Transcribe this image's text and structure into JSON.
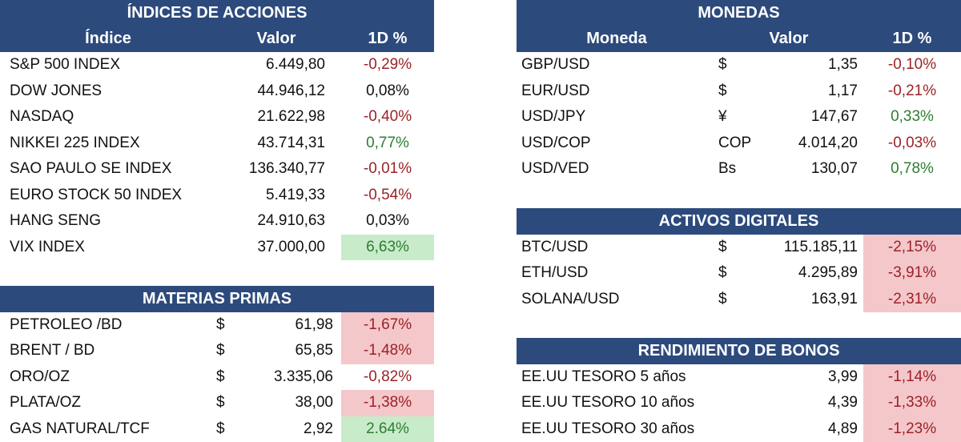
{
  "indices": {
    "title": "ÍNDICES DE ACCIONES",
    "headers": [
      "Índice",
      "Valor",
      "1D %"
    ],
    "rows": [
      {
        "name": "S&P 500 INDEX",
        "value": "6.449,80",
        "change": "-0,29%",
        "dir": "neg",
        "hl": ""
      },
      {
        "name": "DOW JONES",
        "value": "44.946,12",
        "change": "0,08%",
        "dir": "neu",
        "hl": ""
      },
      {
        "name": "NASDAQ",
        "value": "21.622,98",
        "change": "-0,40%",
        "dir": "neg",
        "hl": ""
      },
      {
        "name": "NIKKEI 225 INDEX",
        "value": "43.714,31",
        "change": "0,77%",
        "dir": "pos",
        "hl": ""
      },
      {
        "name": "SAO PAULO SE INDEX",
        "value": "136.340,77",
        "change": "-0,01%",
        "dir": "neg",
        "hl": ""
      },
      {
        "name": "EURO STOCK 50 INDEX",
        "value": "5.419,33",
        "change": "-0,54%",
        "dir": "neg",
        "hl": ""
      },
      {
        "name": "HANG SENG",
        "value": "24.910,63",
        "change": "0,03%",
        "dir": "neu",
        "hl": ""
      },
      {
        "name": "VIX INDEX",
        "value": "37.000,00",
        "change": "6,63%",
        "dir": "pos",
        "hl": "green"
      }
    ]
  },
  "commodities": {
    "title": "MATERIAS PRIMAS",
    "rows": [
      {
        "name": "PETROLEO /BD",
        "cur": "$",
        "value": "61,98",
        "change": "-1,67%",
        "dir": "neg",
        "hl": "red"
      },
      {
        "name": "BRENT / BD",
        "cur": "$",
        "value": "65,85",
        "change": "-1,48%",
        "dir": "neg",
        "hl": "red"
      },
      {
        "name": "ORO/OZ",
        "cur": "$",
        "value": "3.335,06",
        "change": "-0,82%",
        "dir": "neg",
        "hl": ""
      },
      {
        "name": "PLATA/OZ",
        "cur": "$",
        "value": "38,00",
        "change": "-1,38%",
        "dir": "neg",
        "hl": "red"
      },
      {
        "name": "GAS NATURAL/TCF",
        "cur": "$",
        "value": "2,92",
        "change": "2.64%",
        "dir": "pos",
        "hl": "green"
      }
    ]
  },
  "currencies": {
    "title": "MONEDAS",
    "headers": [
      "Moneda",
      "Valor",
      "1D %"
    ],
    "rows": [
      {
        "name": "GBP/USD",
        "cur": "$",
        "value": "1,35",
        "change": "-0,10%",
        "dir": "neg",
        "hl": ""
      },
      {
        "name": "EUR/USD",
        "cur": "$",
        "value": "1,17",
        "change": "-0,21%",
        "dir": "neg",
        "hl": ""
      },
      {
        "name": "USD/JPY",
        "cur": "¥",
        "value": "147,67",
        "change": "0,33%",
        "dir": "pos",
        "hl": ""
      },
      {
        "name": "USD/COP",
        "cur": "COP",
        "value": "4.014,20",
        "change": "-0,03%",
        "dir": "neg",
        "hl": ""
      },
      {
        "name": "USD/VED",
        "cur": "Bs",
        "value": "130,07",
        "change": "0,78%",
        "dir": "pos",
        "hl": ""
      }
    ]
  },
  "digital": {
    "title": "ACTIVOS DIGITALES",
    "rows": [
      {
        "name": "BTC/USD",
        "cur": "$",
        "value": "115.185,11",
        "change": "-2,15%",
        "dir": "neg",
        "hl": "red"
      },
      {
        "name": "ETH/USD",
        "cur": "$",
        "value": "4.295,89",
        "change": "-3,91%",
        "dir": "neg",
        "hl": "red"
      },
      {
        "name": "SOLANA/USD",
        "cur": "$",
        "value": "163,91",
        "change": "-2,31%",
        "dir": "neg",
        "hl": "red"
      }
    ]
  },
  "bonds": {
    "title": "RENDIMIENTO DE BONOS",
    "rows": [
      {
        "name": "EE.UU TESORO 5 años",
        "value": "3,99",
        "change": "-1,14%",
        "dir": "neg",
        "hl": "red"
      },
      {
        "name": "EE.UU TESORO 10 años",
        "value": "4,39",
        "change": "-1,33%",
        "dir": "neg",
        "hl": "red"
      },
      {
        "name": "EE.UU TESORO 30 años",
        "value": "4,89",
        "change": "-1,23%",
        "dir": "neg",
        "hl": "red"
      }
    ]
  }
}
